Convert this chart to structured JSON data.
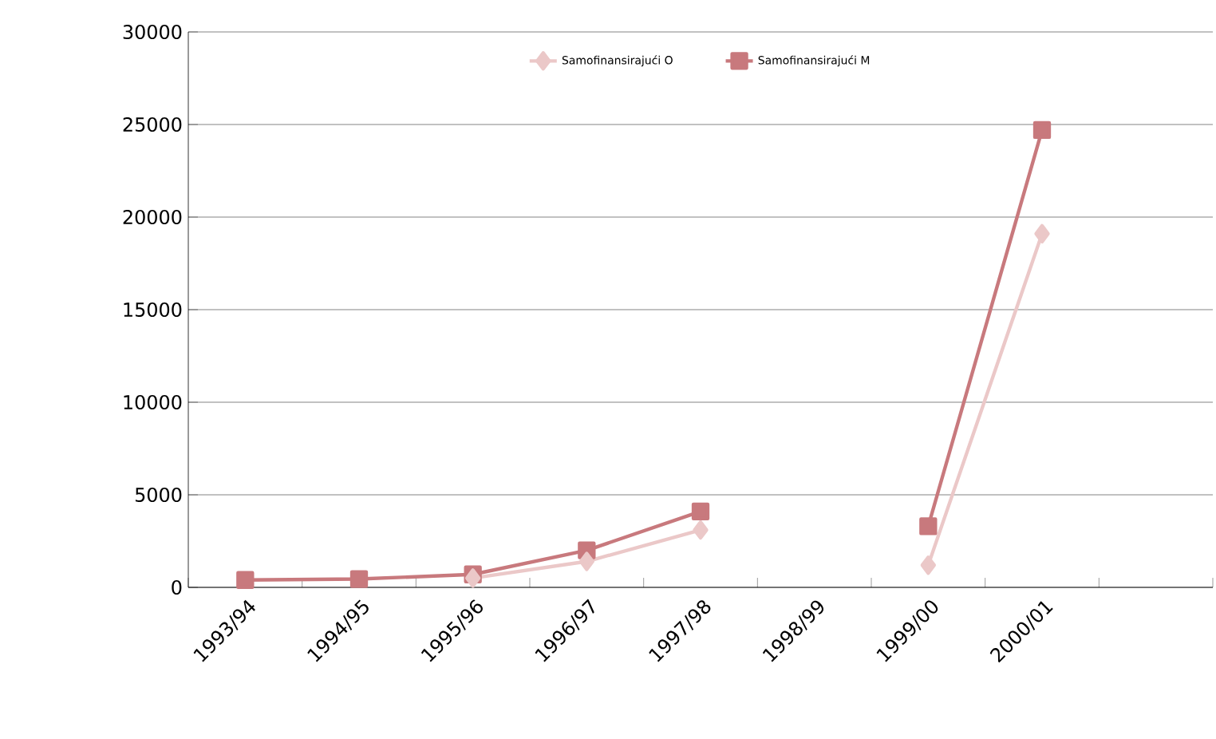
{
  "chart_data": {
    "type": "line",
    "categories": [
      "1993/94",
      "1994/95",
      "1995/96",
      "1996/97",
      "1997/98",
      "1998/99",
      "1999/00",
      "2000/01",
      null
    ],
    "series": [
      {
        "name": "Samofinansirajući O",
        "color": "#ebc8c8",
        "marker": "diamond",
        "values": [
          null,
          null,
          500,
          1400,
          3100,
          null,
          1200,
          19100,
          null
        ]
      },
      {
        "name": "Samofinansirajući M",
        "color": "#c8797d",
        "marker": "square",
        "values": [
          400,
          450,
          700,
          2000,
          4100,
          null,
          3300,
          24700,
          null
        ]
      }
    ],
    "ylim": [
      0,
      30000
    ],
    "yticks": [
      0,
      5000,
      10000,
      15000,
      20000,
      25000,
      30000
    ],
    "grid": "y",
    "legend": "top",
    "line_style": "solid"
  }
}
